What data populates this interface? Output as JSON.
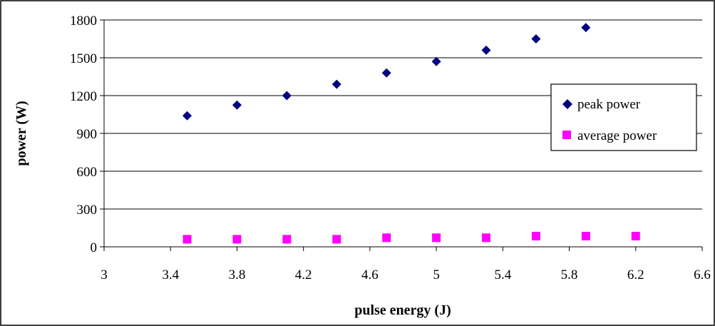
{
  "chart_data": {
    "type": "scatter",
    "title": "",
    "xlabel": "pulse energy (J)",
    "ylabel": "power (W)",
    "xlim": [
      3,
      6.6
    ],
    "ylim": [
      0,
      1800
    ],
    "x_ticks": [
      "3",
      "3.4",
      "3.8",
      "4.2",
      "4.6",
      "5",
      "5.4",
      "5.8",
      "6.2",
      "6.6"
    ],
    "y_ticks": [
      "0",
      "300",
      "600",
      "900",
      "1200",
      "1500",
      "1800"
    ],
    "grid": "horizontal",
    "legend_position": "right",
    "series": [
      {
        "name": "peak power",
        "marker": "diamond",
        "color": "#000080",
        "points": [
          {
            "x": 3.5,
            "y": 1040
          },
          {
            "x": 3.8,
            "y": 1125
          },
          {
            "x": 4.1,
            "y": 1200
          },
          {
            "x": 4.4,
            "y": 1290
          },
          {
            "x": 4.7,
            "y": 1380
          },
          {
            "x": 5.0,
            "y": 1470
          },
          {
            "x": 5.3,
            "y": 1560
          },
          {
            "x": 5.6,
            "y": 1650
          },
          {
            "x": 5.9,
            "y": 1740
          }
        ]
      },
      {
        "name": "average power",
        "marker": "square",
        "color": "#FF00FF",
        "points": [
          {
            "x": 3.5,
            "y": 60
          },
          {
            "x": 3.8,
            "y": 60
          },
          {
            "x": 4.1,
            "y": 60
          },
          {
            "x": 4.4,
            "y": 60
          },
          {
            "x": 4.7,
            "y": 72
          },
          {
            "x": 5.0,
            "y": 72
          },
          {
            "x": 5.3,
            "y": 72
          },
          {
            "x": 5.6,
            "y": 85
          },
          {
            "x": 5.9,
            "y": 85
          },
          {
            "x": 6.2,
            "y": 85
          }
        ]
      }
    ]
  }
}
